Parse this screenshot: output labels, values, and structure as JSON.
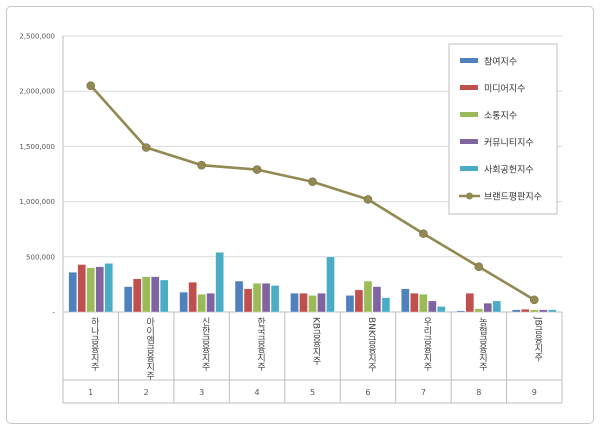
{
  "chart_data": {
    "type": "bar",
    "title": "",
    "xlabel": "",
    "ylabel": "",
    "ylim": [
      0,
      2500000
    ],
    "yticks": [
      "-",
      "500,000",
      "1,000,000",
      "1,500,000",
      "2,000,000",
      "2,500,000"
    ],
    "grid": true,
    "legend_position": "right",
    "categories": [
      "하나금융지주",
      "아이엠금융지주",
      "신한금융지주",
      "한국금융지주",
      "KB금융지주",
      "BNK금융지주",
      "우리금융지주",
      "농협금융지주",
      "JB금융지주"
    ],
    "category_index": [
      "1",
      "2",
      "3",
      "4",
      "5",
      "6",
      "7",
      "8",
      "9"
    ],
    "series": [
      {
        "name": "참여지수",
        "kind": "bar",
        "color": "#4f81bd",
        "values": [
          360000,
          230000,
          180000,
          280000,
          170000,
          150000,
          210000,
          10000,
          20000
        ]
      },
      {
        "name": "미디어지수",
        "kind": "bar",
        "color": "#c0504d",
        "values": [
          430000,
          300000,
          270000,
          210000,
          170000,
          200000,
          170000,
          170000,
          25000
        ]
      },
      {
        "name": "소통지수",
        "kind": "bar",
        "color": "#9bbb59",
        "values": [
          400000,
          320000,
          160000,
          260000,
          150000,
          280000,
          160000,
          30000,
          20000
        ]
      },
      {
        "name": "커뮤니티지수",
        "kind": "bar",
        "color": "#8064a2",
        "values": [
          410000,
          320000,
          170000,
          260000,
          170000,
          230000,
          100000,
          80000,
          20000
        ]
      },
      {
        "name": "사회공헌지수",
        "kind": "bar",
        "color": "#4bacc6",
        "values": [
          440000,
          290000,
          540000,
          240000,
          500000,
          130000,
          50000,
          100000,
          20000
        ]
      },
      {
        "name": "브랜드평판지수",
        "kind": "line",
        "color": "#938953",
        "values": [
          2050000,
          1490000,
          1330000,
          1290000,
          1180000,
          1020000,
          710000,
          410000,
          110000
        ]
      }
    ]
  }
}
